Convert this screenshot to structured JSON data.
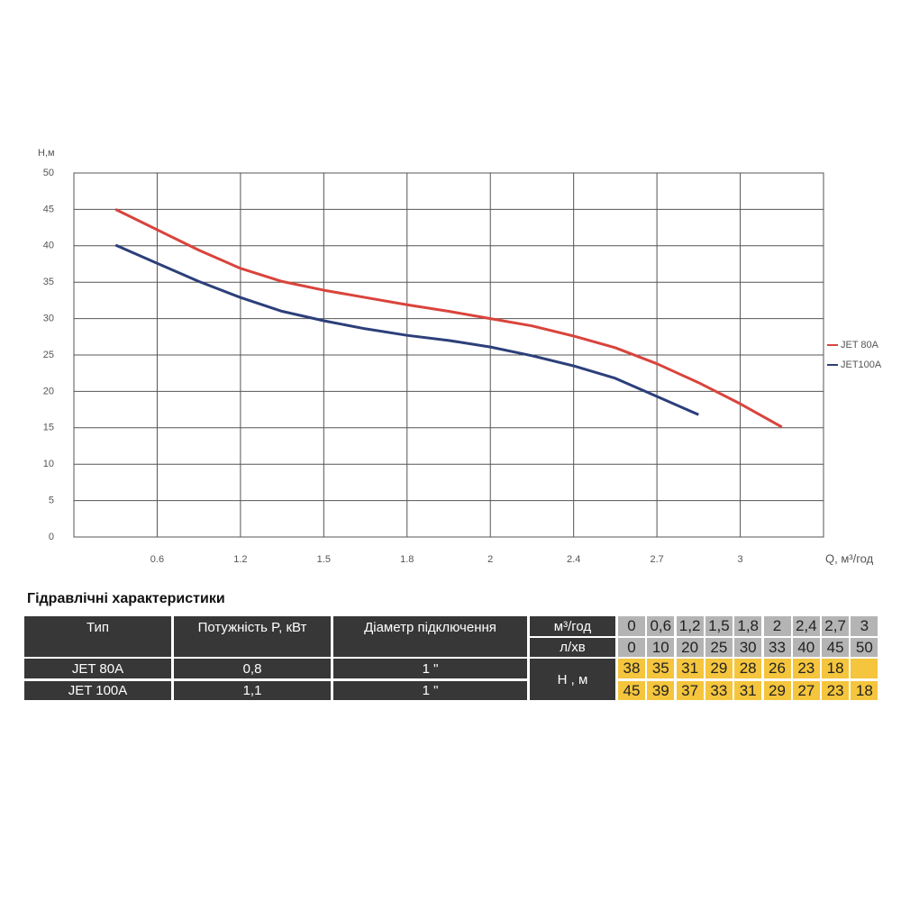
{
  "chart_data": {
    "type": "line",
    "y_label": "H,м",
    "x_label": "Q, м³/год",
    "categories": [
      null,
      null,
      "0.6",
      null,
      "1.2",
      null,
      "1.5",
      null,
      "1.8",
      null,
      "2",
      null,
      "2.4",
      null,
      "2.7",
      null,
      "3",
      null,
      null
    ],
    "series": [
      {
        "name": "JET 80A",
        "color": "#d9443c",
        "values": [
          null,
          45,
          42.2,
          39.4,
          36.9,
          35.1,
          33.9,
          32.9,
          31.9,
          31,
          30,
          29,
          27.6,
          26,
          23.8,
          21.2,
          18.3,
          15.1,
          null
        ]
      },
      {
        "name": "JET100A",
        "color": "#2c3f7a",
        "values": [
          null,
          40.1,
          37.6,
          35.1,
          32.9,
          31,
          29.7,
          28.6,
          27.7,
          27,
          26.1,
          24.9,
          23.5,
          21.8,
          19.3,
          16.8,
          null,
          null,
          null
        ]
      }
    ],
    "ylim": [
      0,
      50
    ],
    "yticks": [
      0,
      5,
      10,
      15,
      20,
      25,
      30,
      35,
      40,
      45,
      50
    ],
    "grid": true,
    "legend": "right"
  },
  "table": {
    "title": "Гідравлічні характеристики",
    "headers": [
      "Тип",
      "Потужність  P, кВт",
      "Діаметр підключення"
    ],
    "rows": [
      [
        "JET 80A",
        "0,8",
        "1 \""
      ],
      [
        "JET 100A",
        "1,1",
        "1 \""
      ]
    ],
    "flow_units": [
      "м³/год",
      "л/хв"
    ],
    "flow_m3h": [
      "0",
      "0,6",
      "1,2",
      "1,5",
      "1,8",
      "2",
      "2,4",
      "2,7",
      "3"
    ],
    "flow_lmin": [
      0,
      10,
      20,
      25,
      30,
      33,
      40,
      45,
      50
    ],
    "head_label": "Н , м",
    "head": [
      [
        38,
        35,
        31,
        29,
        28,
        26,
        23,
        18
      ],
      [
        45,
        39,
        37,
        33,
        31,
        29,
        27,
        23,
        18
      ]
    ]
  }
}
